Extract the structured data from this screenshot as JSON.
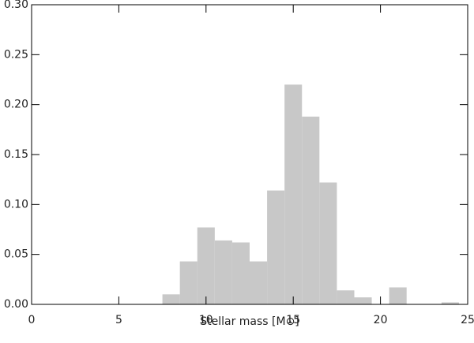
{
  "chart_data": {
    "type": "histogram",
    "x_label": "Stellar mass [M⊙]",
    "bins": [
      7.5,
      8.5,
      9.5,
      10.5,
      11.5,
      12.5,
      13.5,
      14.5,
      15.5,
      16.5,
      17.5,
      18.5,
      19.5,
      20.5,
      21.5,
      22.5,
      23.5,
      24.5
    ],
    "values": [
      0.01,
      0.043,
      0.077,
      0.064,
      0.062,
      0.043,
      0.114,
      0.22,
      0.188,
      0.122,
      0.014,
      0.007,
      0,
      0.017,
      0,
      0,
      0.002
    ],
    "color": "#c8c8c8",
    "xlim": [
      0,
      25
    ],
    "xticks": [
      0,
      5,
      10,
      15,
      20,
      25
    ],
    "ylim": [
      0,
      0.3
    ],
    "yticks": [
      {
        "value": 0,
        "label": "0.00"
      },
      {
        "value": 0.05,
        "label": "0.05"
      },
      {
        "value": 0.1,
        "label": "0.10"
      },
      {
        "value": 0.15,
        "label": "0.15"
      },
      {
        "value": 0.2,
        "label": "0.20"
      },
      {
        "value": 0.25,
        "label": "0.25"
      },
      {
        "value": 0.3,
        "label": "0.30"
      }
    ]
  }
}
